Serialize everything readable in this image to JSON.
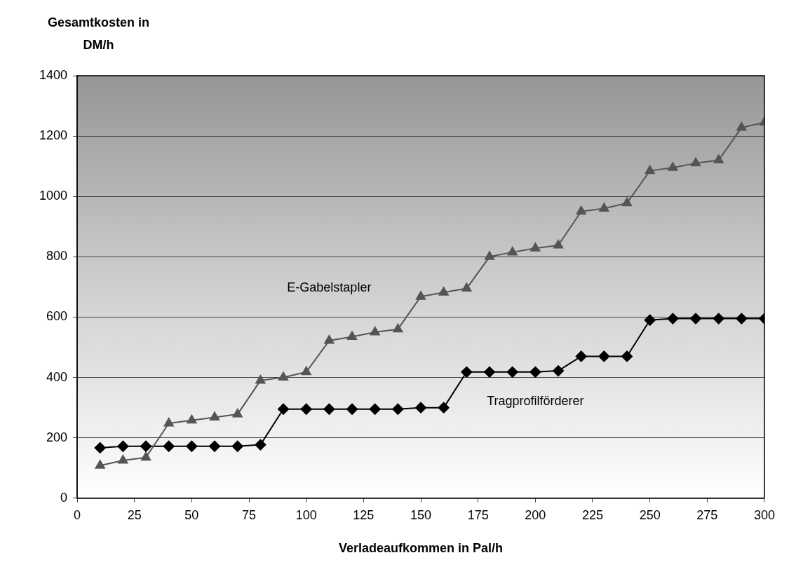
{
  "chart_data": {
    "type": "line",
    "ylabel": "Gesamtkosten in DM/h",
    "xlabel": "Verladeaufkommen in Pal/h",
    "x": [
      10,
      20,
      30,
      40,
      50,
      60,
      70,
      80,
      90,
      100,
      110,
      120,
      130,
      140,
      150,
      160,
      170,
      180,
      190,
      200,
      210,
      220,
      230,
      240,
      250,
      260,
      270,
      280,
      290,
      300
    ],
    "series": [
      {
        "name": "E-Gabelstapler",
        "color": "#555555",
        "marker": "triangle",
        "values": [
          108,
          125,
          135,
          248,
          258,
          268,
          278,
          390,
          400,
          418,
          522,
          535,
          550,
          560,
          668,
          682,
          695,
          800,
          815,
          828,
          838,
          950,
          960,
          978,
          1085,
          1095,
          1110,
          1120,
          1228,
          1245
        ]
      },
      {
        "name": "Tragprofilförderer",
        "color": "#000000",
        "marker": "diamond",
        "values": [
          167,
          172,
          172,
          172,
          172,
          172,
          172,
          177,
          295,
          295,
          295,
          295,
          295,
          295,
          300,
          300,
          418,
          418,
          418,
          418,
          422,
          470,
          470,
          470,
          590,
          595,
          595,
          595,
          595,
          595
        ]
      }
    ],
    "xlim": [
      0,
      300
    ],
    "xticks": [
      0,
      25,
      50,
      75,
      100,
      125,
      150,
      175,
      200,
      225,
      250,
      275,
      300
    ],
    "ylim": [
      0,
      1400
    ],
    "yticks": [
      0,
      200,
      400,
      600,
      800,
      1000,
      1200,
      1400
    ],
    "grid": "y",
    "legend": false,
    "line_style": "solid"
  }
}
